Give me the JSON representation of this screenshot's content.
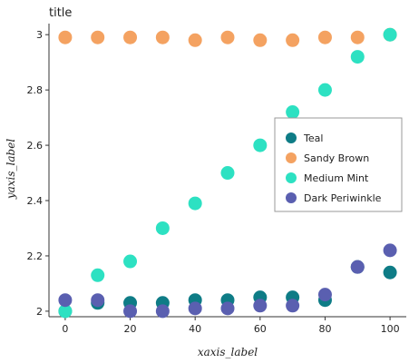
{
  "chart_data": {
    "type": "scatter",
    "title": "title",
    "xlabel": "xaxis_label",
    "ylabel": "yaxis_label",
    "xlim": [
      -5,
      105
    ],
    "ylim": [
      1.98,
      3.04
    ],
    "x_ticks": [
      0,
      20,
      40,
      60,
      80,
      100
    ],
    "x_tick_labels": [
      "0",
      "20",
      "40",
      "60",
      "80",
      "100"
    ],
    "y_ticks": [
      2.0,
      2.2,
      2.4,
      2.6,
      2.8,
      3.0
    ],
    "y_tick_labels": [
      "2",
      "2.2",
      "2.4",
      "2.6",
      "2.8",
      "3"
    ],
    "legend_position": "right",
    "grid": false,
    "series": [
      {
        "name": "Teal",
        "color": "#0e7c86",
        "x": [
          0,
          10,
          20,
          30,
          40,
          50,
          60,
          70,
          80,
          90,
          100
        ],
        "y": [
          2.0,
          2.03,
          2.03,
          2.03,
          2.04,
          2.04,
          2.05,
          2.05,
          2.04,
          2.16,
          2.14
        ]
      },
      {
        "name": "Sandy Brown",
        "color": "#f4a261",
        "x": [
          0,
          10,
          20,
          30,
          40,
          50,
          60,
          70,
          80,
          90,
          100
        ],
        "y": [
          2.99,
          2.99,
          2.99,
          2.99,
          2.98,
          2.99,
          2.98,
          2.98,
          2.99,
          2.99,
          3.0
        ]
      },
      {
        "name": "Medium Mint",
        "color": "#2de1c2",
        "x": [
          0,
          10,
          20,
          30,
          40,
          50,
          60,
          70,
          80,
          90,
          100
        ],
        "y": [
          2.0,
          2.13,
          2.18,
          2.3,
          2.39,
          2.5,
          2.6,
          2.72,
          2.8,
          2.92,
          3.0
        ]
      },
      {
        "name": "Dark Periwinkle",
        "color": "#5a5fb0",
        "x": [
          0,
          10,
          20,
          30,
          40,
          50,
          60,
          70,
          80,
          90,
          100
        ],
        "y": [
          2.04,
          2.04,
          2.0,
          2.0,
          2.01,
          2.01,
          2.02,
          2.02,
          2.06,
          2.16,
          2.22
        ]
      }
    ]
  }
}
